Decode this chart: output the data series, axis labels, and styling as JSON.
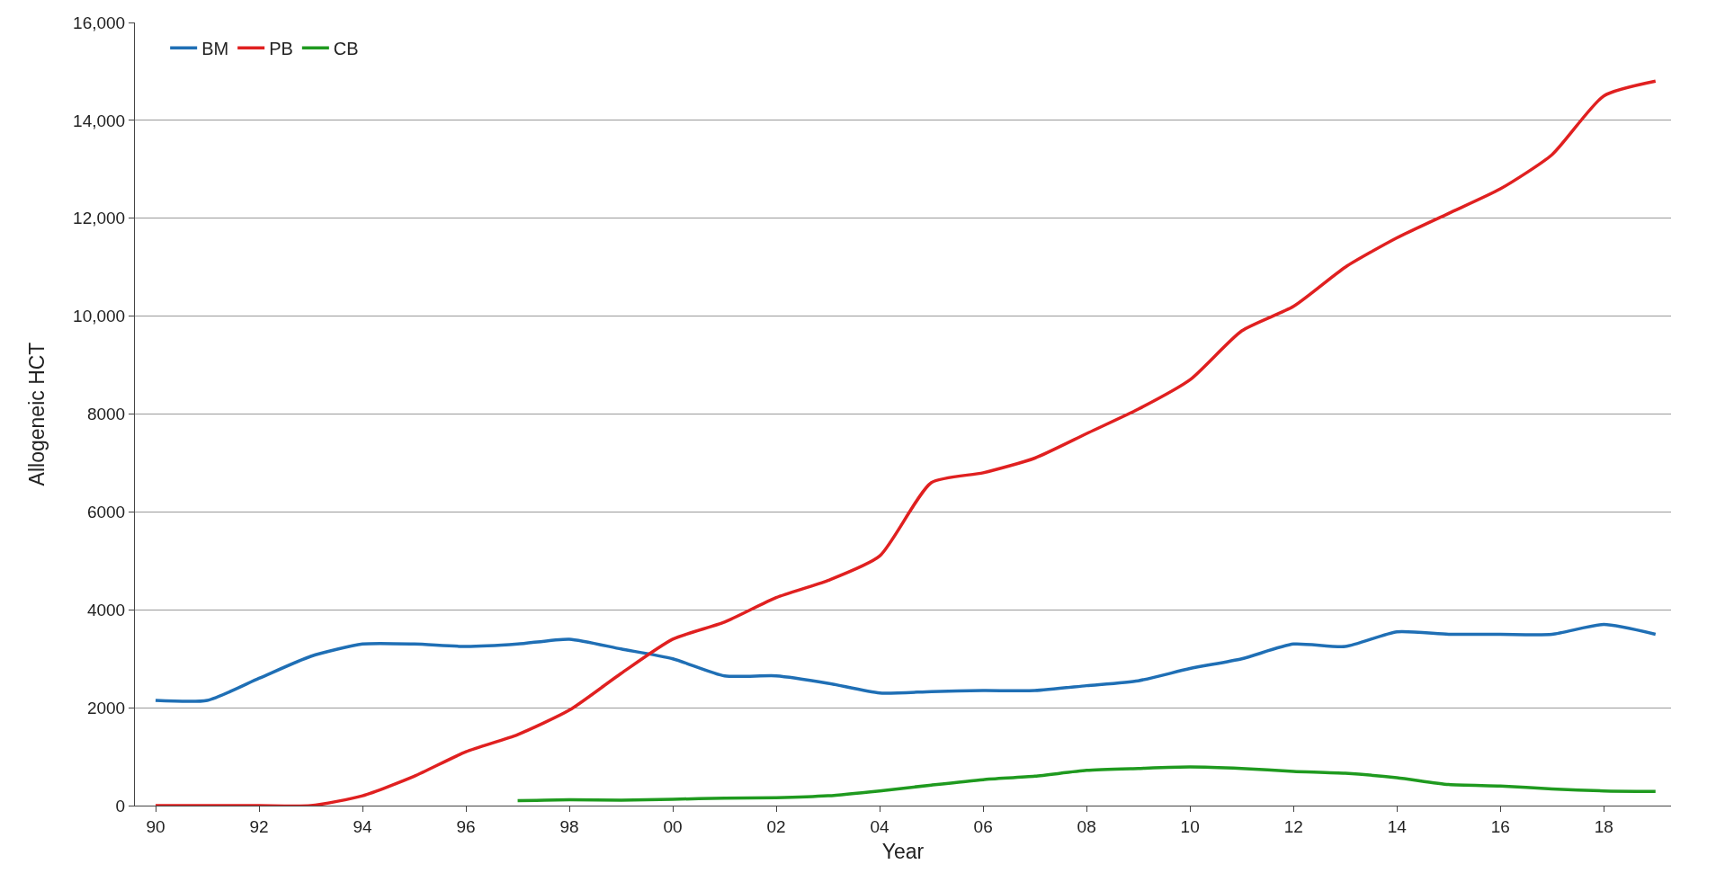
{
  "chart_data": {
    "type": "line",
    "xlabel": "Year",
    "ylabel": "Allogeneic HCT",
    "x": [
      1990,
      1991,
      1992,
      1993,
      1994,
      1995,
      1996,
      1997,
      1998,
      1999,
      2000,
      2001,
      2002,
      2003,
      2004,
      2005,
      2006,
      2007,
      2008,
      2009,
      2010,
      2011,
      2012,
      2013,
      2014,
      2015,
      2016,
      2017,
      2018,
      2019
    ],
    "series": [
      {
        "name": "BM",
        "color": "#1f6fb5",
        "values": [
          2150,
          2150,
          2600,
          3050,
          3300,
          3300,
          3250,
          3300,
          3400,
          3200,
          3000,
          2650,
          2650,
          2500,
          2300,
          2330,
          2350,
          2350,
          2450,
          2550,
          2800,
          3000,
          3300,
          3250,
          3550,
          3500,
          3500,
          3500,
          3700,
          3500
        ]
      },
      {
        "name": "PB",
        "color": "#e02020",
        "values": [
          0,
          0,
          0,
          0,
          200,
          600,
          1100,
          1450,
          1950,
          2700,
          3400,
          3750,
          4250,
          4600,
          5100,
          6600,
          6800,
          7100,
          7600,
          8100,
          8700,
          9700,
          10200,
          11000,
          11600,
          12100,
          12600,
          13300,
          14500,
          14800
        ]
      },
      {
        "name": "CB",
        "color": "#1f9a1f",
        "values": [
          null,
          null,
          null,
          null,
          null,
          null,
          null,
          100,
          120,
          110,
          130,
          150,
          160,
          200,
          300,
          420,
          530,
          600,
          720,
          760,
          790,
          760,
          700,
          660,
          570,
          430,
          400,
          340,
          300,
          290
        ]
      }
    ],
    "xlim": [
      1989.6,
      2019.3
    ],
    "xticks": [
      {
        "value": 1990,
        "label": "90"
      },
      {
        "value": 1992,
        "label": "92"
      },
      {
        "value": 1994,
        "label": "94"
      },
      {
        "value": 1996,
        "label": "96"
      },
      {
        "value": 1998,
        "label": "98"
      },
      {
        "value": 2000,
        "label": "00"
      },
      {
        "value": 2002,
        "label": "02"
      },
      {
        "value": 2004,
        "label": "04"
      },
      {
        "value": 2006,
        "label": "06"
      },
      {
        "value": 2008,
        "label": "08"
      },
      {
        "value": 2010,
        "label": "10"
      },
      {
        "value": 2012,
        "label": "12"
      },
      {
        "value": 2014,
        "label": "14"
      },
      {
        "value": 2016,
        "label": "16"
      },
      {
        "value": 2018,
        "label": "18"
      }
    ],
    "ylim": [
      0,
      16000
    ],
    "yticks": [
      0,
      2000,
      4000,
      6000,
      8000,
      {
        "value": 10000,
        "label": "10,000"
      },
      {
        "value": 12000,
        "label": "12,000"
      },
      {
        "value": 14000,
        "label": "14,000"
      },
      {
        "value": 16000,
        "label": "16,000"
      }
    ],
    "grid": "y",
    "legend": "top left",
    "marker": "none",
    "line_style": "solid"
  }
}
